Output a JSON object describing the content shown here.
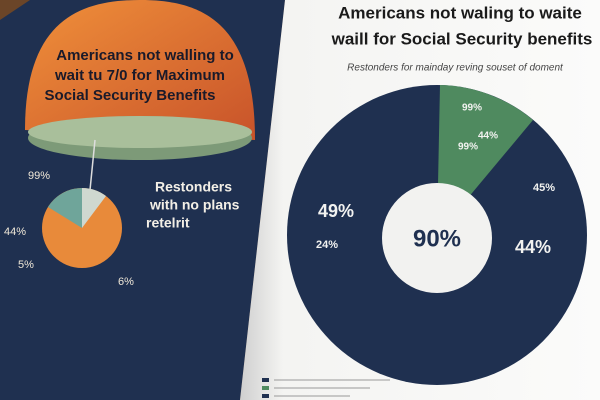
{
  "left_page": {
    "title": [
      "Americans not walling to",
      "wait tu 7/0 for Maximum",
      "Social  Security Benefits"
    ],
    "callout": [
      "Restonders",
      "with no plans",
      "retelrit"
    ],
    "pie_labels": [
      "99%",
      "44%",
      "5%",
      "6%"
    ]
  },
  "right_page": {
    "title": [
      "Americans not waling to waite",
      "waill for Social Security benefits"
    ],
    "subtitle": "Restonders for mainday reving souset of doment",
    "center_label": "90%",
    "labels": [
      "99%",
      "44%",
      "99%",
      "45%",
      "49%",
      "24%",
      "44%"
    ]
  }
}
